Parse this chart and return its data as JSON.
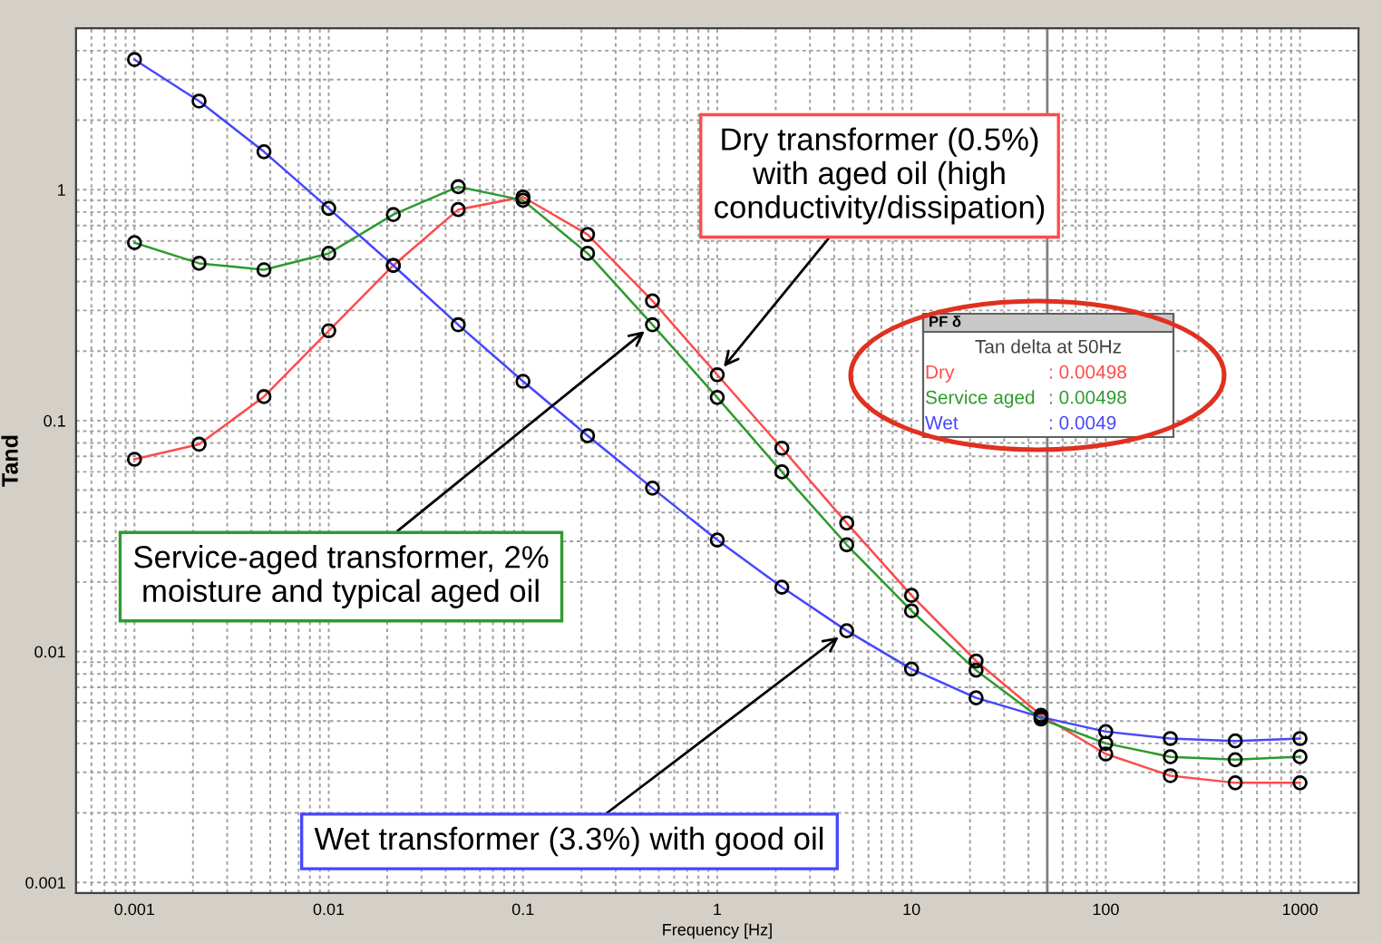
{
  "chart_data": {
    "type": "line",
    "xlabel": "Frequency [Hz]",
    "ylabel": "Tand",
    "log": "xy",
    "grid": true,
    "marker": "circle",
    "line_style": "solid",
    "x": [
      0.001,
      0.00215,
      0.00464,
      0.01,
      0.0215,
      0.0464,
      0.1,
      0.215,
      0.464,
      1,
      2.15,
      4.64,
      10,
      21.5,
      46.4,
      100,
      215,
      464,
      1000
    ],
    "xlim": [
      0.0005,
      2000
    ],
    "ylim": [
      0.0009,
      5
    ],
    "xticks": [
      0.001,
      0.01,
      0.1,
      1,
      10,
      100,
      1000
    ],
    "yticks": [
      0.001,
      0.01,
      0.1,
      1
    ],
    "series": [
      {
        "name": "Dry",
        "color": "#ff4a4a",
        "values": [
          0.068,
          0.079,
          0.127,
          0.245,
          0.47,
          0.82,
          0.93,
          0.64,
          0.33,
          0.158,
          0.076,
          0.036,
          0.0175,
          0.0091,
          0.0053,
          0.0036,
          0.0029,
          0.0027,
          0.0027
        ]
      },
      {
        "name": "Service aged",
        "color": "#2e9a2e",
        "values": [
          0.59,
          0.48,
          0.45,
          0.53,
          0.78,
          1.03,
          0.9,
          0.53,
          0.26,
          0.126,
          0.06,
          0.029,
          0.015,
          0.0083,
          0.0051,
          0.004,
          0.0035,
          0.0034,
          0.0035
        ]
      },
      {
        "name": "Wet",
        "color": "#4646ff",
        "values": [
          3.66,
          2.42,
          1.46,
          0.83,
          0.47,
          0.26,
          0.148,
          0.086,
          0.051,
          0.0304,
          0.019,
          0.0123,
          0.0084,
          0.0063,
          0.0052,
          0.0045,
          0.0042,
          0.0041,
          0.0042
        ]
      }
    ],
    "ref_lines": [
      {
        "axis": "x",
        "value": 50,
        "color": "#808080"
      }
    ],
    "annotations": [
      {
        "text": "Dry transformer (0.5%)\nwith aged oil (high\nconductivity/dissipation)",
        "x": 1,
        "y": 0.158
      },
      {
        "text": "Service-aged transformer, 2%\nmoisture and typical aged oil",
        "x": 0.464,
        "y": 0.26
      },
      {
        "text": "Wet transformer (3.3%) with good oil",
        "x": 4.64,
        "y": 0.0123
      },
      "PF δ",
      "Tan delta at 50Hz",
      ": 0.00498",
      ": 0.00498",
      ": 0.0049"
    ]
  }
}
